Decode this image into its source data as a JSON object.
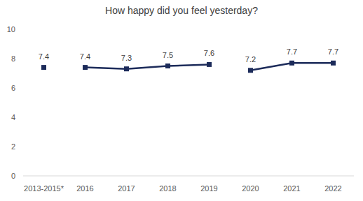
{
  "chart_data": {
    "type": "line",
    "title": "How happy did you feel yesterday?",
    "categories": [
      "2013-2015*",
      "2016",
      "2017",
      "2018",
      "2019",
      "2020",
      "2021",
      "2022"
    ],
    "series": [
      {
        "color": "#1c2b5a",
        "values": [
          7.4,
          null,
          null,
          null,
          null,
          null,
          null,
          null
        ]
      },
      {
        "color": "#1c2b5a",
        "values": [
          null,
          7.4,
          7.3,
          7.5,
          7.6,
          null,
          null,
          null
        ]
      },
      {
        "color": "#1c2b5a",
        "values": [
          null,
          null,
          null,
          null,
          null,
          7.2,
          7.7,
          7.7
        ]
      }
    ],
    "marker": "square",
    "line_style": "solid",
    "ylim": [
      0,
      10
    ],
    "yticks": [
      0,
      2,
      4,
      6,
      8,
      10
    ],
    "grid": false,
    "data_labels": true
  }
}
